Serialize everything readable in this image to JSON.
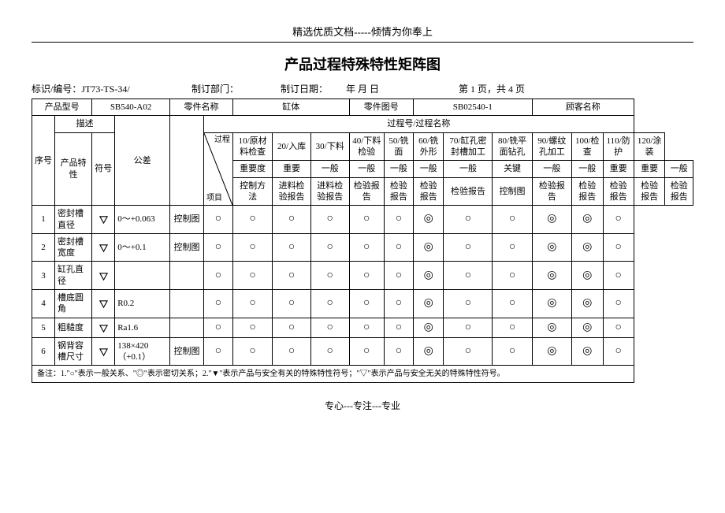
{
  "header": "精选优质文档-----倾情为你奉上",
  "title": "产品过程特殊特性矩阵图",
  "meta": {
    "id_label": "标识/编号：JT73-TS-34/",
    "dept": "制订部门：",
    "date": "制订日期：",
    "date_blank": "年  月  日",
    "page": "第  1  页，共  4  页"
  },
  "hdr": {
    "prod_model_l": "产品型号",
    "prod_model_v": "SB540-A02",
    "part_name_l": "零件名称",
    "part_name_v": "缸体",
    "part_no_l": "零件图号",
    "part_no_v": "SB02540-1",
    "customer_l": "顾客名称",
    "seq": "序号",
    "desc": "描述",
    "tol": "公差",
    "prod_char": "产品特性",
    "sym": "符号",
    "proc_name_group": "过程号/过程名称",
    "diag_top": "过程",
    "diag_bot": "项目",
    "p10": "10/原材料检查",
    "p20": "20/入库",
    "p30": "30/下料",
    "p40": "40/下料检验",
    "p50": "50/铣面",
    "p60": "60/铣外形",
    "p70": "70/缸孔密封槽加工",
    "p80": "80/铣平面钻孔",
    "p90": "90/螺纹孔加工",
    "p100": "100/检查",
    "p110": "110/防护",
    "p120": "120/涂装",
    "importance": "重要度",
    "i10": "重要",
    "i20": "一般",
    "i30": "一般",
    "i40": "一般",
    "i50": "一般",
    "i60": "一般",
    "i70": "关键",
    "i80": "一般",
    "i90": "一般",
    "i100": "重要",
    "i110": "重要",
    "i120": "一般",
    "ctrl_method": "控制方法",
    "c10": "进料检验报告",
    "c20": "进料检验报告",
    "c30": "检验报告",
    "c40": "检验报告",
    "c50": "检验报告",
    "c60": "检验报告",
    "c70": "控制图",
    "c80": "检验报告",
    "c90": "检验报告",
    "c100": "检验报告",
    "c110": "检验报告",
    "c120": "检验报告"
  },
  "rows": [
    {
      "n": "1",
      "name": "密封槽直径",
      "sym": "down",
      "tol": "0～+0.063",
      "ctrl": "控制图",
      "cells": [
        "o",
        "o",
        "o",
        "o",
        "o",
        "o",
        "d",
        "o",
        "o",
        "d",
        "d",
        "o"
      ]
    },
    {
      "n": "2",
      "name": "密封槽宽度",
      "sym": "down",
      "tol": "0～+0.1",
      "ctrl": "控制图",
      "cells": [
        "o",
        "o",
        "o",
        "o",
        "o",
        "o",
        "d",
        "o",
        "o",
        "d",
        "d",
        "o"
      ]
    },
    {
      "n": "3",
      "name": "缸孔直径",
      "sym": "down",
      "tol": "",
      "ctrl": "",
      "cells": [
        "o",
        "o",
        "o",
        "o",
        "o",
        "o",
        "d",
        "o",
        "o",
        "d",
        "d",
        "o"
      ]
    },
    {
      "n": "4",
      "name": "槽底圆角",
      "sym": "down",
      "tol": "R0.2",
      "ctrl": "",
      "cells": [
        "o",
        "o",
        "o",
        "o",
        "o",
        "o",
        "d",
        "o",
        "o",
        "d",
        "d",
        "o"
      ]
    },
    {
      "n": "5",
      "name": "粗糙度",
      "sym": "down",
      "tol": "Ra1.6",
      "ctrl": "",
      "cells": [
        "o",
        "o",
        "o",
        "o",
        "o",
        "o",
        "d",
        "o",
        "o",
        "d",
        "d",
        "o"
      ]
    },
    {
      "n": "6",
      "name": "钢背容槽尺寸",
      "sym": "down",
      "tol": "138×420（+0.1）",
      "ctrl": "控制图",
      "cells": [
        "o",
        "o",
        "o",
        "o",
        "o",
        "o",
        "d",
        "o",
        "o",
        "d",
        "d",
        "o"
      ]
    }
  ],
  "footnote": "备注：1.\"○\"表示一般关系、\"◎\"表示密切关系；2.\"▼\"表示产品与安全有关的特殊特性符号；\"▽\"表示产品与安全无关的特殊特性符号。",
  "footer": "专心---专注---专业"
}
